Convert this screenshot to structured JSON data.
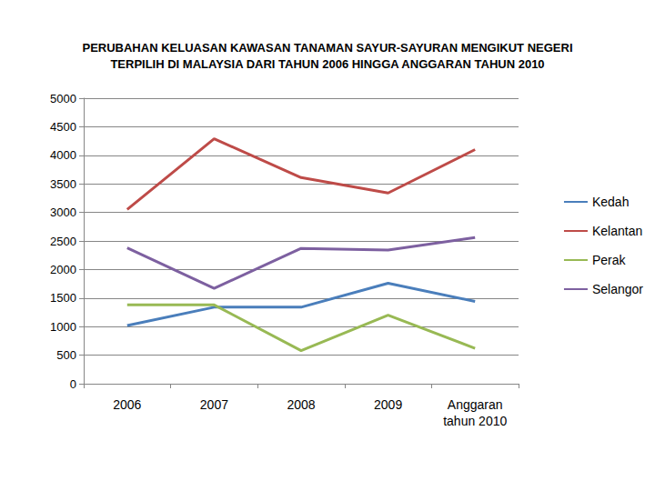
{
  "chart_data": {
    "type": "line",
    "title": "PERUBAHAN KELUASAN KAWASAN TANAMAN SAYUR-SAYURAN MENGIKUT NEGERI\nTERPILIH DI MALAYSIA DARI TAHUN 2006 HINGGA ANGGARAN TAHUN 2010",
    "categories": [
      "2006",
      "2007",
      "2008",
      "2009",
      "Anggaran\ntahun 2010"
    ],
    "series": [
      {
        "name": "Kedah",
        "color": "#4a7ebb",
        "values": [
          1020,
          1340,
          1340,
          1760,
          1440
        ]
      },
      {
        "name": "Kelantan",
        "color": "#be4b48",
        "values": [
          3050,
          4290,
          3610,
          3340,
          4100
        ]
      },
      {
        "name": "Perak",
        "color": "#98b954",
        "values": [
          1380,
          1380,
          580,
          1200,
          620
        ]
      },
      {
        "name": "Selangor",
        "color": "#7d60a0",
        "values": [
          2380,
          1670,
          2370,
          2340,
          2560
        ]
      }
    ],
    "ylim": [
      0,
      5000
    ],
    "yticks": [
      0,
      500,
      1000,
      1500,
      2000,
      2500,
      3000,
      3500,
      4000,
      4500,
      5000
    ],
    "grid": true,
    "legend": "right"
  }
}
